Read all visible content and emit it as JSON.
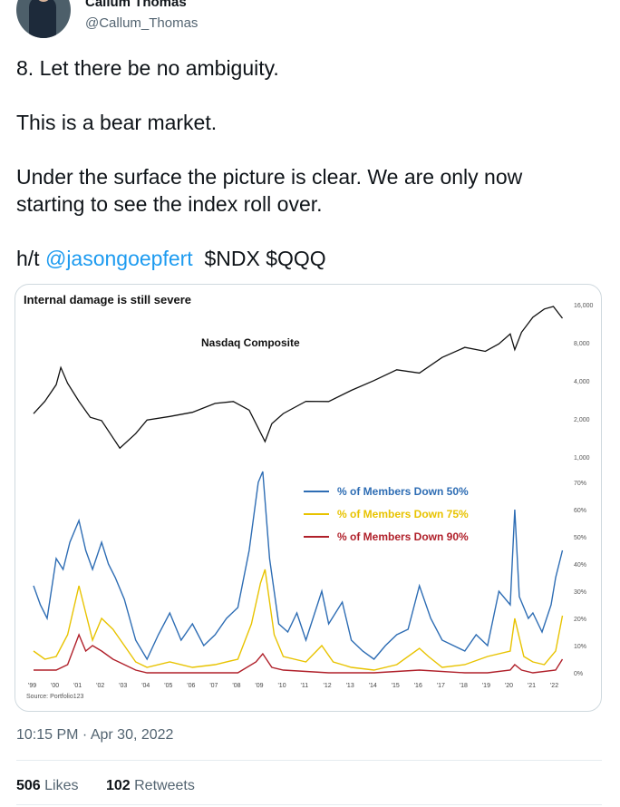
{
  "author": {
    "name": "Callum Thomas",
    "handle": "@Callum_Thomas"
  },
  "tweet": {
    "line1": "8. Let there be no ambiguity.",
    "line2": "This is a bear market.",
    "line3": "Under the surface the picture is clear.  We are only now starting to see the index roll over.",
    "ht_prefix": "h/t",
    "mention": "@jasongoepfert",
    "tickers": "$NDX $QQQ"
  },
  "chart_data": [
    {
      "type": "line",
      "title": "Internal damage is still severe",
      "series_label": "Nasdaq Composite",
      "y_scale": "log",
      "y_ticks": [
        "16,000",
        "8,000",
        "4,000",
        "2,000",
        "1,000"
      ],
      "x": [
        1999.0,
        1999.5,
        2000.0,
        2000.2,
        2000.5,
        2001.0,
        2001.5,
        2002.0,
        2002.8,
        2003.5,
        2004.0,
        2005.0,
        2006.0,
        2007.0,
        2007.8,
        2008.5,
        2009.2,
        2009.5,
        2010.0,
        2011.0,
        2012.0,
        2013.0,
        2014.0,
        2015.0,
        2016.0,
        2017.0,
        2018.0,
        2018.9,
        2019.5,
        2020.0,
        2020.2,
        2020.5,
        2021.0,
        2021.5,
        2021.9,
        2022.3
      ],
      "values": [
        2200,
        2700,
        3800,
        5000,
        3900,
        2700,
        2100,
        1900,
        1200,
        1500,
        2000,
        2050,
        2300,
        2600,
        2800,
        2300,
        1350,
        1800,
        2250,
        2700,
        2800,
        3300,
        4100,
        4800,
        4700,
        6000,
        7500,
        6700,
        8000,
        9200,
        7200,
        9500,
        13000,
        14500,
        15800,
        12500
      ]
    },
    {
      "type": "line",
      "y_ticks": [
        "70%",
        "60%",
        "50%",
        "40%",
        "30%",
        "20%",
        "10%",
        "0%"
      ],
      "x_ticks": [
        "'99",
        "'00",
        "'01",
        "'02",
        "'03",
        "'04",
        "'05",
        "'06",
        "'07",
        "'08",
        "'09",
        "'10",
        "'11",
        "'12",
        "'13",
        "'14",
        "'15",
        "'16",
        "'17",
        "'18",
        "'19",
        "'20",
        "'21",
        "'22"
      ],
      "source": "Source: Portfolio123",
      "series": [
        {
          "name": "% of Members Down 50%",
          "color": "#2e6db4",
          "x": [
            1999.0,
            1999.3,
            1999.6,
            2000.0,
            2000.3,
            2000.6,
            2001.0,
            2001.3,
            2001.6,
            2002.0,
            2002.3,
            2002.6,
            2003.0,
            2003.5,
            2004.0,
            2004.5,
            2005.0,
            2005.5,
            2006.0,
            2006.5,
            2007.0,
            2007.5,
            2008.0,
            2008.5,
            2008.9,
            2009.1,
            2009.4,
            2009.8,
            2010.2,
            2010.6,
            2011.0,
            2011.7,
            2012.0,
            2012.6,
            2013.0,
            2013.5,
            2014.0,
            2014.5,
            2015.0,
            2015.5,
            2016.0,
            2016.5,
            2017.0,
            2017.5,
            2018.0,
            2018.5,
            2019.0,
            2019.5,
            2020.0,
            2020.2,
            2020.4,
            2020.8,
            2021.0,
            2021.4,
            2021.8,
            2022.0,
            2022.3
          ],
          "values": [
            32,
            25,
            20,
            42,
            38,
            48,
            56,
            45,
            38,
            48,
            40,
            35,
            27,
            12,
            5,
            14,
            22,
            12,
            18,
            10,
            14,
            20,
            24,
            45,
            70,
            74,
            42,
            18,
            15,
            22,
            12,
            30,
            18,
            26,
            12,
            8,
            5,
            10,
            14,
            16,
            32,
            20,
            12,
            10,
            8,
            14,
            10,
            30,
            25,
            60,
            28,
            20,
            22,
            15,
            25,
            35,
            45
          ]
        },
        {
          "name": "% of Members Down 75%",
          "color": "#e8c300",
          "x": [
            1999.0,
            1999.5,
            2000.0,
            2000.5,
            2001.0,
            2001.3,
            2001.6,
            2002.0,
            2002.5,
            2003.0,
            2003.5,
            2004.0,
            2005.0,
            2006.0,
            2007.0,
            2008.0,
            2008.6,
            2009.0,
            2009.2,
            2009.6,
            2010.0,
            2011.0,
            2011.7,
            2012.2,
            2013.0,
            2014.0,
            2015.0,
            2016.0,
            2016.4,
            2017.0,
            2018.0,
            2019.0,
            2020.0,
            2020.2,
            2020.6,
            2021.0,
            2021.5,
            2022.0,
            2022.3
          ],
          "values": [
            8,
            5,
            6,
            14,
            32,
            22,
            12,
            20,
            16,
            10,
            4,
            2,
            4,
            2,
            3,
            5,
            18,
            33,
            38,
            14,
            6,
            4,
            10,
            4,
            2,
            1,
            3,
            9,
            6,
            2,
            3,
            6,
            8,
            20,
            6,
            4,
            3,
            8,
            21
          ]
        },
        {
          "name": "% of Members Down 90%",
          "color": "#b0202a",
          "x": [
            1999.0,
            2000.0,
            2000.5,
            2001.0,
            2001.3,
            2001.6,
            2002.0,
            2002.5,
            2003.0,
            2003.5,
            2004.0,
            2006.0,
            2008.0,
            2008.8,
            2009.1,
            2009.5,
            2010.0,
            2012.0,
            2014.0,
            2016.0,
            2018.0,
            2019.0,
            2020.0,
            2020.2,
            2020.5,
            2021.0,
            2022.0,
            2022.3
          ],
          "values": [
            1,
            1,
            3,
            14,
            8,
            10,
            8,
            5,
            3,
            1,
            0,
            0,
            0,
            4,
            7,
            2,
            1,
            0,
            0,
            1,
            0,
            0,
            1,
            3,
            1,
            0,
            1,
            5
          ]
        }
      ]
    }
  ],
  "meta": {
    "time": "10:15 PM · Apr 30, 2022"
  },
  "stats": {
    "likes_count": "506",
    "likes_label": "Likes",
    "retweets_count": "102",
    "retweets_label": "Retweets"
  },
  "colors": {
    "link": "#1d9bf0",
    "muted": "#536471"
  }
}
